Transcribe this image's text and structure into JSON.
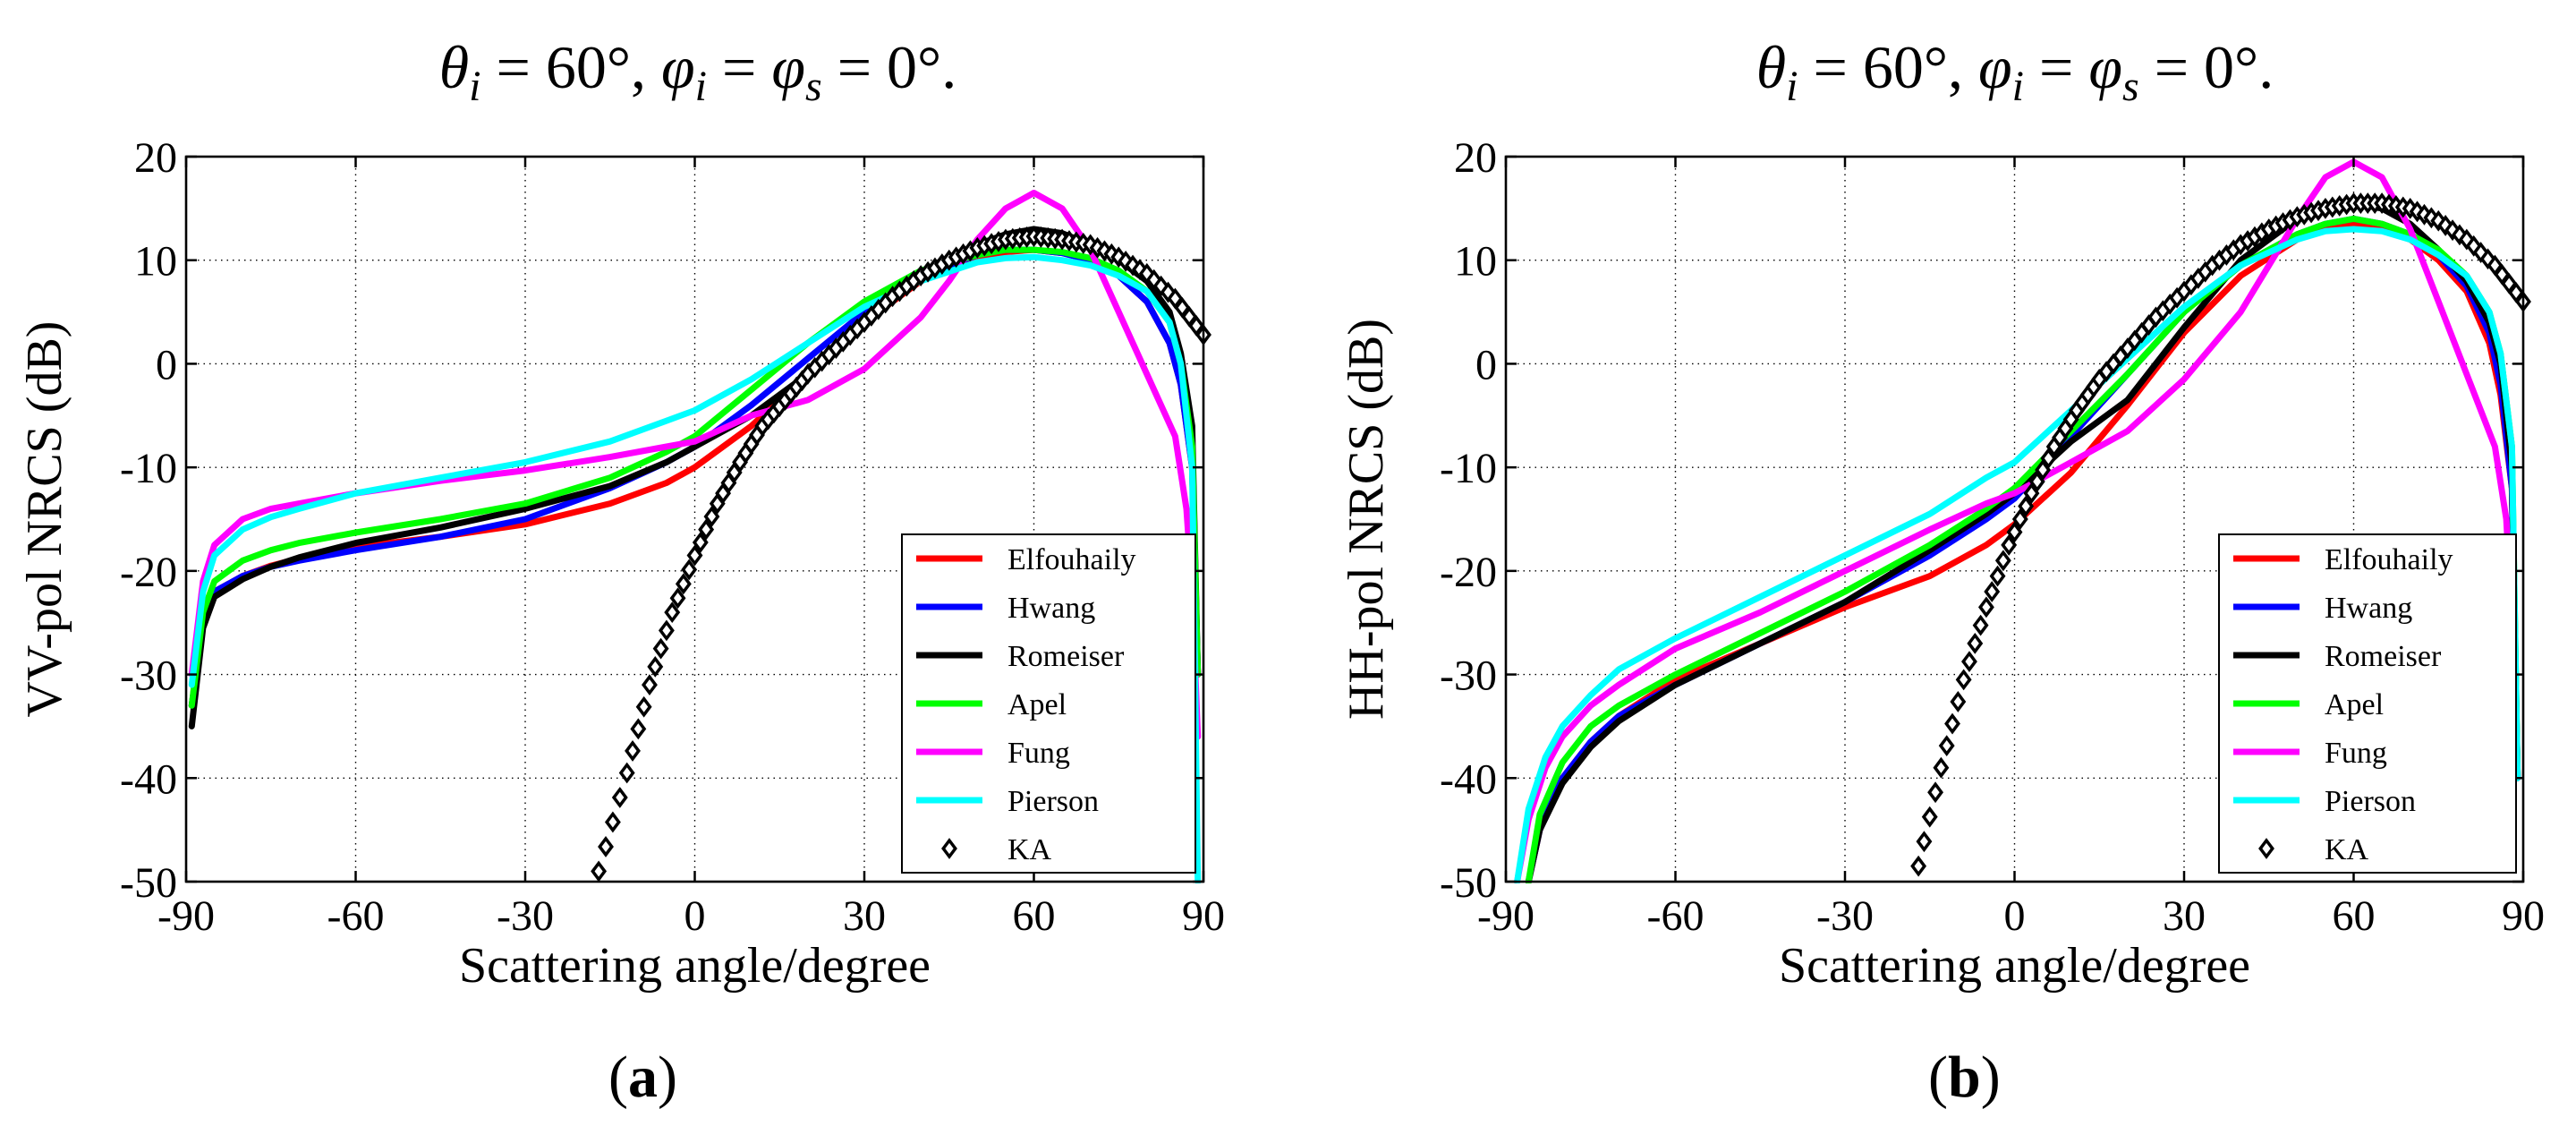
{
  "colors": {
    "Elfouhaily": "#ff0000",
    "Hwang": "#0000ff",
    "Romeiser": "#000000",
    "Apel": "#00ff00",
    "Fung": "#ff00ff",
    "Pierson": "#00ffff",
    "KA": "#000000"
  },
  "chart_data": [
    {
      "type": "line",
      "panel_label": "(a)",
      "title": "θi = 60°,  φi = φs = 0°.",
      "title_parts": {
        "theta": "θ",
        "theta_sub": "i",
        "eq1": " = 60°,  ",
        "phi1": "φ",
        "phi1_sub": "i",
        "eq2": " = ",
        "phi2": "φ",
        "phi2_sub": "s",
        "eq3": " = 0°."
      },
      "xlabel": "Scattering angle/degree",
      "ylabel": "VV-pol NRCS (dB)",
      "xlim": [
        -90,
        90
      ],
      "ylim": [
        -50,
        20
      ],
      "xticks": [
        -90,
        -60,
        -30,
        0,
        30,
        60,
        90
      ],
      "yticks": [
        -50,
        -40,
        -30,
        -20,
        -10,
        0,
        10,
        20
      ],
      "xtick_labels": [
        "-90",
        "-60",
        "-30",
        "0",
        "30",
        "60",
        "90"
      ],
      "ytick_labels": [
        "-50",
        "-40",
        "-30",
        "-20",
        "-10",
        "0",
        "10",
        "20"
      ],
      "grid": true,
      "legend": "bottom-right",
      "series": [
        {
          "name": "Elfouhaily",
          "style": "line",
          "x": [
            -89,
            -87,
            -85,
            -80,
            -75,
            -70,
            -60,
            -45,
            -30,
            -15,
            -5,
            0,
            10,
            20,
            30,
            40,
            50,
            55,
            60,
            65,
            70,
            75,
            80,
            84,
            86,
            88,
            89
          ],
          "y": [
            -33,
            -25,
            -22,
            -20.5,
            -19.5,
            -18.8,
            -17.7,
            -16.7,
            -15.5,
            -13.5,
            -11.5,
            -10,
            -6,
            -1,
            4,
            8,
            10,
            10.8,
            11,
            10.7,
            10,
            8.5,
            6,
            2,
            -2,
            -10,
            -30
          ]
        },
        {
          "name": "Hwang",
          "style": "line",
          "x": [
            -89,
            -87,
            -85,
            -80,
            -75,
            -70,
            -60,
            -45,
            -30,
            -15,
            -5,
            0,
            10,
            20,
            30,
            40,
            50,
            55,
            60,
            65,
            70,
            75,
            80,
            84,
            86,
            88,
            89
          ],
          "y": [
            -33,
            -25,
            -22,
            -20.5,
            -19.6,
            -19,
            -18,
            -16.7,
            -15,
            -12,
            -9.5,
            -8,
            -4,
            0.5,
            5,
            8.5,
            10.5,
            11,
            11,
            10.7,
            10,
            8.5,
            6,
            2,
            -2,
            -10,
            -30
          ]
        },
        {
          "name": "Romeiser",
          "style": "line",
          "x": [
            -89,
            -87,
            -85,
            -80,
            -75,
            -70,
            -60,
            -45,
            -30,
            -15,
            -5,
            0,
            10,
            20,
            30,
            40,
            50,
            55,
            60,
            65,
            70,
            75,
            80,
            84,
            86,
            88,
            89
          ],
          "y": [
            -35,
            -25.5,
            -22.5,
            -20.8,
            -19.6,
            -18.7,
            -17.3,
            -15.8,
            -14,
            -11.8,
            -9.5,
            -8,
            -5,
            -1,
            4,
            8.5,
            11.5,
            12.5,
            13,
            12.6,
            11.5,
            10,
            8,
            5,
            1,
            -6,
            -30
          ]
        },
        {
          "name": "Apel",
          "style": "line",
          "x": [
            -89,
            -87,
            -85,
            -80,
            -75,
            -70,
            -60,
            -45,
            -30,
            -15,
            -5,
            0,
            10,
            20,
            30,
            40,
            50,
            55,
            60,
            65,
            70,
            75,
            80,
            84,
            86,
            88,
            89
          ],
          "y": [
            -33,
            -24,
            -21,
            -19,
            -18,
            -17.3,
            -16.3,
            -15,
            -13.5,
            -11,
            -8.5,
            -7,
            -2.5,
            2,
            6,
            9,
            10.5,
            11,
            11,
            10.8,
            10.2,
            9,
            7,
            4,
            0,
            -8,
            -30
          ]
        },
        {
          "name": "Fung",
          "style": "line",
          "x": [
            -89,
            -87,
            -85,
            -80,
            -75,
            -70,
            -60,
            -45,
            -30,
            -15,
            -5,
            0,
            10,
            20,
            30,
            40,
            45,
            50,
            55,
            60,
            65,
            70,
            75,
            80,
            85,
            87,
            88,
            89
          ],
          "y": [
            -30,
            -21,
            -17.5,
            -15,
            -14,
            -13.5,
            -12.5,
            -11.3,
            -10.3,
            -9,
            -8,
            -7.5,
            -5,
            -3.5,
            -0.5,
            4.5,
            8,
            12,
            15,
            16.5,
            15,
            11,
            5,
            -1,
            -7,
            -14,
            -22,
            -36
          ]
        },
        {
          "name": "Pierson",
          "style": "line",
          "x": [
            -89,
            -87,
            -85,
            -80,
            -75,
            -70,
            -60,
            -45,
            -30,
            -15,
            -5,
            0,
            10,
            20,
            30,
            40,
            50,
            55,
            60,
            65,
            70,
            75,
            80,
            84,
            86,
            88,
            89
          ],
          "y": [
            -31,
            -22,
            -18.5,
            -16,
            -14.8,
            -14,
            -12.5,
            -11,
            -9.5,
            -7.5,
            -5.5,
            -4.5,
            -1.5,
            2,
            5.5,
            8,
            9.8,
            10.2,
            10.3,
            10,
            9.5,
            8.5,
            7,
            4,
            0,
            -10,
            -50
          ]
        },
        {
          "name": "KA",
          "style": "marker",
          "marker": "diamond",
          "x": [
            -17,
            -12,
            -8,
            -4,
            0,
            4,
            8,
            12,
            16,
            20,
            25,
            30,
            35,
            40,
            45,
            50,
            55,
            60,
            65,
            70,
            75,
            80,
            85,
            90
          ],
          "y": [
            -49,
            -39.5,
            -31,
            -24,
            -18.5,
            -13.5,
            -9.5,
            -6,
            -3.5,
            -1,
            1.5,
            4,
            6.5,
            8.5,
            10,
            11.2,
            12,
            12.3,
            12,
            11.5,
            10.3,
            8.7,
            6.3,
            2.8
          ]
        }
      ]
    },
    {
      "type": "line",
      "panel_label": "(b)",
      "title": "θi = 60°,  φi = φs = 0°.",
      "title_parts": {
        "theta": "θ",
        "theta_sub": "i",
        "eq1": " = 60°,  ",
        "phi1": "φ",
        "phi1_sub": "i",
        "eq2": " = ",
        "phi2": "φ",
        "phi2_sub": "s",
        "eq3": " = 0°."
      },
      "xlabel": "Scattering angle/degree",
      "ylabel": "HH-pol NRCS (dB)",
      "xlim": [
        -90,
        90
      ],
      "ylim": [
        -50,
        20
      ],
      "xticks": [
        -90,
        -60,
        -30,
        0,
        30,
        60,
        90
      ],
      "yticks": [
        -50,
        -40,
        -30,
        -20,
        -10,
        0,
        10,
        20
      ],
      "xtick_labels": [
        "-90",
        "-60",
        "-30",
        "0",
        "30",
        "60",
        "90"
      ],
      "ytick_labels": [
        "-50",
        "-40",
        "-30",
        "-20",
        "-10",
        "0",
        "10",
        "20"
      ],
      "grid": true,
      "legend": "bottom-right",
      "series": [
        {
          "name": "Elfouhaily",
          "style": "line",
          "x": [
            -86,
            -84,
            -80,
            -75,
            -70,
            -60,
            -45,
            -30,
            -15,
            -5,
            0,
            10,
            20,
            30,
            40,
            50,
            55,
            60,
            65,
            70,
            75,
            80,
            84,
            86,
            88,
            89
          ],
          "y": [
            -50,
            -45,
            -40,
            -36.5,
            -34,
            -30.5,
            -27,
            -23.5,
            -20.5,
            -17.5,
            -15.5,
            -10.5,
            -4,
            3,
            8.5,
            12,
            13,
            13.5,
            13,
            12,
            10,
            7,
            2,
            -3,
            -12,
            -40
          ]
        },
        {
          "name": "Hwang",
          "style": "line",
          "x": [
            -86,
            -84,
            -80,
            -75,
            -70,
            -60,
            -45,
            -30,
            -15,
            -5,
            0,
            10,
            20,
            30,
            40,
            50,
            55,
            60,
            65,
            70,
            75,
            80,
            84,
            86,
            88,
            89
          ],
          "y": [
            -50,
            -45,
            -40,
            -36.5,
            -34,
            -31,
            -27,
            -23,
            -18.5,
            -15,
            -13,
            -7,
            -1,
            5,
            9.5,
            12.5,
            13.5,
            14,
            13.5,
            12.5,
            10.5,
            7.5,
            3,
            -2,
            -12,
            -40
          ]
        },
        {
          "name": "Romeiser",
          "style": "line",
          "x": [
            -86,
            -84,
            -80,
            -75,
            -70,
            -60,
            -45,
            -30,
            -15,
            -5,
            0,
            10,
            20,
            30,
            40,
            50,
            55,
            60,
            65,
            70,
            75,
            80,
            84,
            86,
            88,
            89
          ],
          "y": [
            -50,
            -45,
            -40.5,
            -37,
            -34.5,
            -31,
            -27,
            -23,
            -18,
            -14.5,
            -12.5,
            -7.5,
            -3.5,
            3.5,
            10,
            14,
            15,
            15.5,
            15,
            13.5,
            11,
            8,
            4,
            0,
            -10,
            -40
          ]
        },
        {
          "name": "Apel",
          "style": "line",
          "x": [
            -86,
            -84,
            -80,
            -75,
            -70,
            -60,
            -45,
            -30,
            -15,
            -5,
            0,
            10,
            20,
            30,
            40,
            50,
            55,
            60,
            65,
            70,
            75,
            80,
            84,
            86,
            88,
            89
          ],
          "y": [
            -50,
            -43.5,
            -38.5,
            -35,
            -33,
            -30,
            -26,
            -22,
            -17.5,
            -14,
            -12,
            -6.5,
            -1,
            5,
            9.5,
            12.5,
            13.5,
            14,
            13.5,
            12.5,
            11,
            8.5,
            5,
            1,
            -8,
            -40
          ]
        },
        {
          "name": "Fung",
          "style": "line",
          "x": [
            -88,
            -86,
            -83,
            -80,
            -75,
            -70,
            -60,
            -45,
            -30,
            -15,
            -5,
            0,
            10,
            20,
            30,
            40,
            45,
            50,
            55,
            60,
            65,
            70,
            75,
            80,
            85,
            87,
            88,
            89
          ],
          "y": [
            -50,
            -44,
            -39,
            -36,
            -33,
            -31,
            -27.5,
            -24,
            -20,
            -16,
            -13.5,
            -12.5,
            -9.5,
            -6.5,
            -1.5,
            5,
            9.5,
            14,
            18,
            19.5,
            18,
            13,
            6,
            -1,
            -8,
            -15,
            -25,
            -40
          ]
        },
        {
          "name": "Pierson",
          "style": "line",
          "x": [
            -88,
            -86,
            -83,
            -80,
            -75,
            -70,
            -60,
            -45,
            -30,
            -15,
            -5,
            0,
            10,
            20,
            30,
            40,
            50,
            55,
            60,
            65,
            70,
            75,
            80,
            84,
            86,
            88,
            89
          ],
          "y": [
            -50,
            -43,
            -38,
            -35,
            -32,
            -29.5,
            -26.5,
            -22.5,
            -18.5,
            -14.5,
            -11,
            -9.5,
            -4.5,
            0.5,
            5.5,
            9.5,
            12,
            12.8,
            13,
            12.8,
            12,
            10.5,
            8.5,
            5,
            1,
            -8,
            -40
          ]
        },
        {
          "name": "KA",
          "style": "marker",
          "marker": "diamond",
          "x": [
            -17,
            -13,
            -9,
            -5,
            -1,
            3,
            7,
            11,
            15,
            20,
            25,
            30,
            35,
            40,
            45,
            50,
            55,
            60,
            65,
            70,
            75,
            80,
            85,
            90
          ],
          "y": [
            -48.5,
            -39,
            -30.5,
            -23.5,
            -17.5,
            -12.5,
            -8,
            -4.5,
            -1.5,
            1.5,
            4.5,
            7,
            9.5,
            11.5,
            13,
            14.2,
            15,
            15.5,
            15.5,
            15,
            13.8,
            12,
            9.5,
            6
          ]
        }
      ]
    }
  ]
}
